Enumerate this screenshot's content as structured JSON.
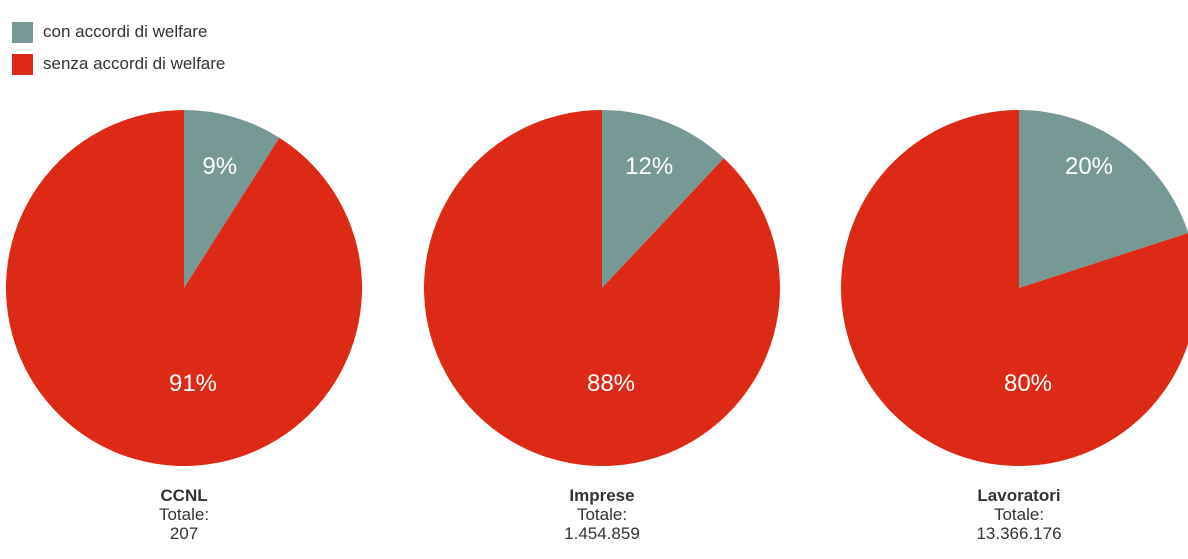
{
  "legend": {
    "items": [
      {
        "label": "con accordi di welfare",
        "color": "#769996"
      },
      {
        "label": "senza accordi di welfare",
        "color": "#dd2a16"
      }
    ]
  },
  "chart_data": [
    {
      "type": "pie",
      "name": "CCNL",
      "total_label": "Totale:",
      "total": "207",
      "slices": [
        {
          "label": "con accordi di welfare",
          "value": 9,
          "text": "9%",
          "color": "#769996"
        },
        {
          "label": "senza accordi di welfare",
          "value": 91,
          "text": "91%",
          "color": "#dd2a16"
        }
      ]
    },
    {
      "type": "pie",
      "name": "Imprese",
      "total_label": "Totale:",
      "total": "1.454.859",
      "slices": [
        {
          "label": "con accordi di welfare",
          "value": 12,
          "text": "12%",
          "color": "#769996"
        },
        {
          "label": "senza accordi di welfare",
          "value": 88,
          "text": "88%",
          "color": "#dd2a16"
        }
      ]
    },
    {
      "type": "pie",
      "name": "Lavoratori",
      "total_label": "Totale:",
      "total": "13.366.176",
      "slices": [
        {
          "label": "con accordi di welfare",
          "value": 20,
          "text": "20%",
          "color": "#769996"
        },
        {
          "label": "senza accordi di welfare",
          "value": 80,
          "text": "80%",
          "color": "#dd2a16"
        }
      ]
    }
  ]
}
